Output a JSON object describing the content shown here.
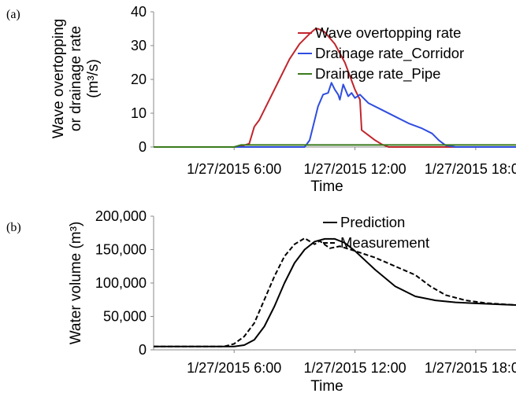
{
  "chart_data": [
    {
      "type": "line",
      "panel_label": "(a)",
      "xlabel": "Time",
      "ylabel_lines": [
        "Wave overtopping",
        "or drainage rate",
        "(m³/s)"
      ],
      "xlim": [
        "1/27/2015 2:00",
        "1/27/2015 20:00"
      ],
      "ylim": [
        0,
        40
      ],
      "yticks": [
        "0",
        "10",
        "20",
        "30",
        "40"
      ],
      "xticks": [
        {
          "time": "1/27/2015 6:00",
          "label": "1/27/2015 6:00"
        },
        {
          "time": "1/27/2015 12:00",
          "label": "1/27/2015 12:00"
        },
        {
          "time": "1/27/2015 18:00",
          "label": "1/27/2015 18:00"
        }
      ],
      "legend_position": "top-right",
      "series": [
        {
          "name": "Wave overtopping rate",
          "color": "#c0262d",
          "dash": "solid",
          "points": [
            [
              "1/27/2015 2:00",
              0
            ],
            [
              "1/27/2015 6:00",
              0
            ],
            [
              "1/27/2015 6:30",
              0.5
            ],
            [
              "1/27/2015 6:45",
              1
            ],
            [
              "1/27/2015 7:00",
              6
            ],
            [
              "1/27/2015 7:15",
              8
            ],
            [
              "1/27/2015 7:45",
              14
            ],
            [
              "1/27/2015 8:15",
              20
            ],
            [
              "1/27/2015 8:45",
              26
            ],
            [
              "1/27/2015 9:15",
              30.5
            ],
            [
              "1/27/2015 9:45",
              33.5
            ],
            [
              "1/27/2015 10:00",
              34.8
            ],
            [
              "1/27/2015 10:10",
              35
            ],
            [
              "1/27/2015 10:30",
              34
            ],
            [
              "1/27/2015 11:00",
              30.5
            ],
            [
              "1/27/2015 11:30",
              25
            ],
            [
              "1/27/2015 12:00",
              17
            ],
            [
              "1/27/2015 12:15",
              14
            ],
            [
              "1/27/2015 12:20",
              5
            ],
            [
              "1/27/2015 12:40",
              3.5
            ],
            [
              "1/27/2015 13:00",
              2
            ],
            [
              "1/27/2015 13:20",
              0.8
            ],
            [
              "1/27/2015 13:40",
              0
            ],
            [
              "1/27/2015 20:00",
              0
            ]
          ]
        },
        {
          "name": "Drainage rate_Corridor",
          "color": "#2f4de0",
          "dash": "solid",
          "points": [
            [
              "1/27/2015 2:00",
              0
            ],
            [
              "1/27/2015 9:30",
              0
            ],
            [
              "1/27/2015 9:45",
              2
            ],
            [
              "1/27/2015 10:00",
              8
            ],
            [
              "1/27/2015 10:10",
              12
            ],
            [
              "1/27/2015 10:25",
              15.5
            ],
            [
              "1/27/2015 10:40",
              16
            ],
            [
              "1/27/2015 10:50",
              19
            ],
            [
              "1/27/2015 11:00",
              17
            ],
            [
              "1/27/2015 11:10",
              15.5
            ],
            [
              "1/27/2015 11:15",
              14
            ],
            [
              "1/27/2015 11:25",
              18.5
            ],
            [
              "1/27/2015 11:40",
              15
            ],
            [
              "1/27/2015 11:50",
              16
            ],
            [
              "1/27/2015 12:00",
              14.5
            ],
            [
              "1/27/2015 12:15",
              15.5
            ],
            [
              "1/27/2015 12:40",
              13
            ],
            [
              "1/27/2015 13:20",
              11
            ],
            [
              "1/27/2015 14:00",
              9
            ],
            [
              "1/27/2015 14:40",
              7
            ],
            [
              "1/27/2015 15:20",
              5.5
            ],
            [
              "1/27/2015 15:50",
              4
            ],
            [
              "1/27/2015 16:10",
              2
            ],
            [
              "1/27/2015 16:30",
              0.5
            ],
            [
              "1/27/2015 17:00",
              0
            ],
            [
              "1/27/2015 20:00",
              0
            ]
          ]
        },
        {
          "name": "Drainage rate_Pipe",
          "color": "#3a7a1c",
          "dash": "solid",
          "points": [
            [
              "1/27/2015 2:00",
              0
            ],
            [
              "1/27/2015 6:00",
              0
            ],
            [
              "1/27/2015 6:20",
              0.6
            ],
            [
              "1/27/2015 20:00",
              0.6
            ]
          ]
        }
      ]
    },
    {
      "type": "line",
      "panel_label": "(b)",
      "xlabel": "Time",
      "ylabel": "Water volume (m³)",
      "xlim": [
        "1/27/2015 2:00",
        "1/27/2015 20:00"
      ],
      "ylim": [
        0,
        200000
      ],
      "yticks": [
        "0",
        "50,000",
        "100,000",
        "150,000",
        "200,000"
      ],
      "xticks": [
        {
          "time": "1/27/2015 6:00",
          "label": "1/27/2015 6:00"
        },
        {
          "time": "1/27/2015 12:00",
          "label": "1/27/2015 12:00"
        },
        {
          "time": "1/27/2015 18:00",
          "label": "1/27/2015 18:00"
        }
      ],
      "legend_position": "top-right",
      "series": [
        {
          "name": "Prediction",
          "color": "#000000",
          "dash": "solid",
          "points": [
            [
              "1/27/2015 2:00",
              5000
            ],
            [
              "1/27/2015 6:00",
              5000
            ],
            [
              "1/27/2015 6:30",
              7000
            ],
            [
              "1/27/2015 7:00",
              15000
            ],
            [
              "1/27/2015 7:30",
              35000
            ],
            [
              "1/27/2015 8:00",
              65000
            ],
            [
              "1/27/2015 8:30",
              100000
            ],
            [
              "1/27/2015 9:00",
              130000
            ],
            [
              "1/27/2015 9:30",
              150000
            ],
            [
              "1/27/2015 10:00",
              162000
            ],
            [
              "1/27/2015 10:30",
              166000
            ],
            [
              "1/27/2015 11:00",
              166000
            ],
            [
              "1/27/2015 11:30",
              160000
            ],
            [
              "1/27/2015 12:00",
              148000
            ],
            [
              "1/27/2015 13:00",
              120000
            ],
            [
              "1/27/2015 14:00",
              95000
            ],
            [
              "1/27/2015 15:00",
              80000
            ],
            [
              "1/27/2015 16:00",
              74000
            ],
            [
              "1/27/2015 17:00",
              71000
            ],
            [
              "1/27/2015 18:00",
              69500
            ],
            [
              "1/27/2015 20:00",
              67000
            ]
          ]
        },
        {
          "name": "Measurement",
          "color": "#000000",
          "dash": "dashed",
          "points": [
            [
              "1/27/2015 2:00",
              5000
            ],
            [
              "1/27/2015 5:30",
              5000
            ],
            [
              "1/27/2015 6:00",
              9000
            ],
            [
              "1/27/2015 6:30",
              20000
            ],
            [
              "1/27/2015 7:00",
              40000
            ],
            [
              "1/27/2015 7:30",
              75000
            ],
            [
              "1/27/2015 8:00",
              110000
            ],
            [
              "1/27/2015 8:30",
              140000
            ],
            [
              "1/27/2015 9:00",
              158000
            ],
            [
              "1/27/2015 9:30",
              167000
            ],
            [
              "1/27/2015 10:00",
              158000
            ],
            [
              "1/27/2015 10:15",
              163000
            ],
            [
              "1/27/2015 10:45",
              152000
            ],
            [
              "1/27/2015 11:15",
              155000
            ],
            [
              "1/27/2015 12:00",
              148000
            ],
            [
              "1/27/2015 13:00",
              138000
            ],
            [
              "1/27/2015 14:00",
              125000
            ],
            [
              "1/27/2015 15:00",
              112000
            ],
            [
              "1/27/2015 15:45",
              95000
            ],
            [
              "1/27/2015 16:30",
              82000
            ],
            [
              "1/27/2015 17:30",
              74000
            ],
            [
              "1/27/2015 18:30",
              70000
            ],
            [
              "1/27/2015 20:00",
              67000
            ]
          ]
        }
      ]
    }
  ]
}
